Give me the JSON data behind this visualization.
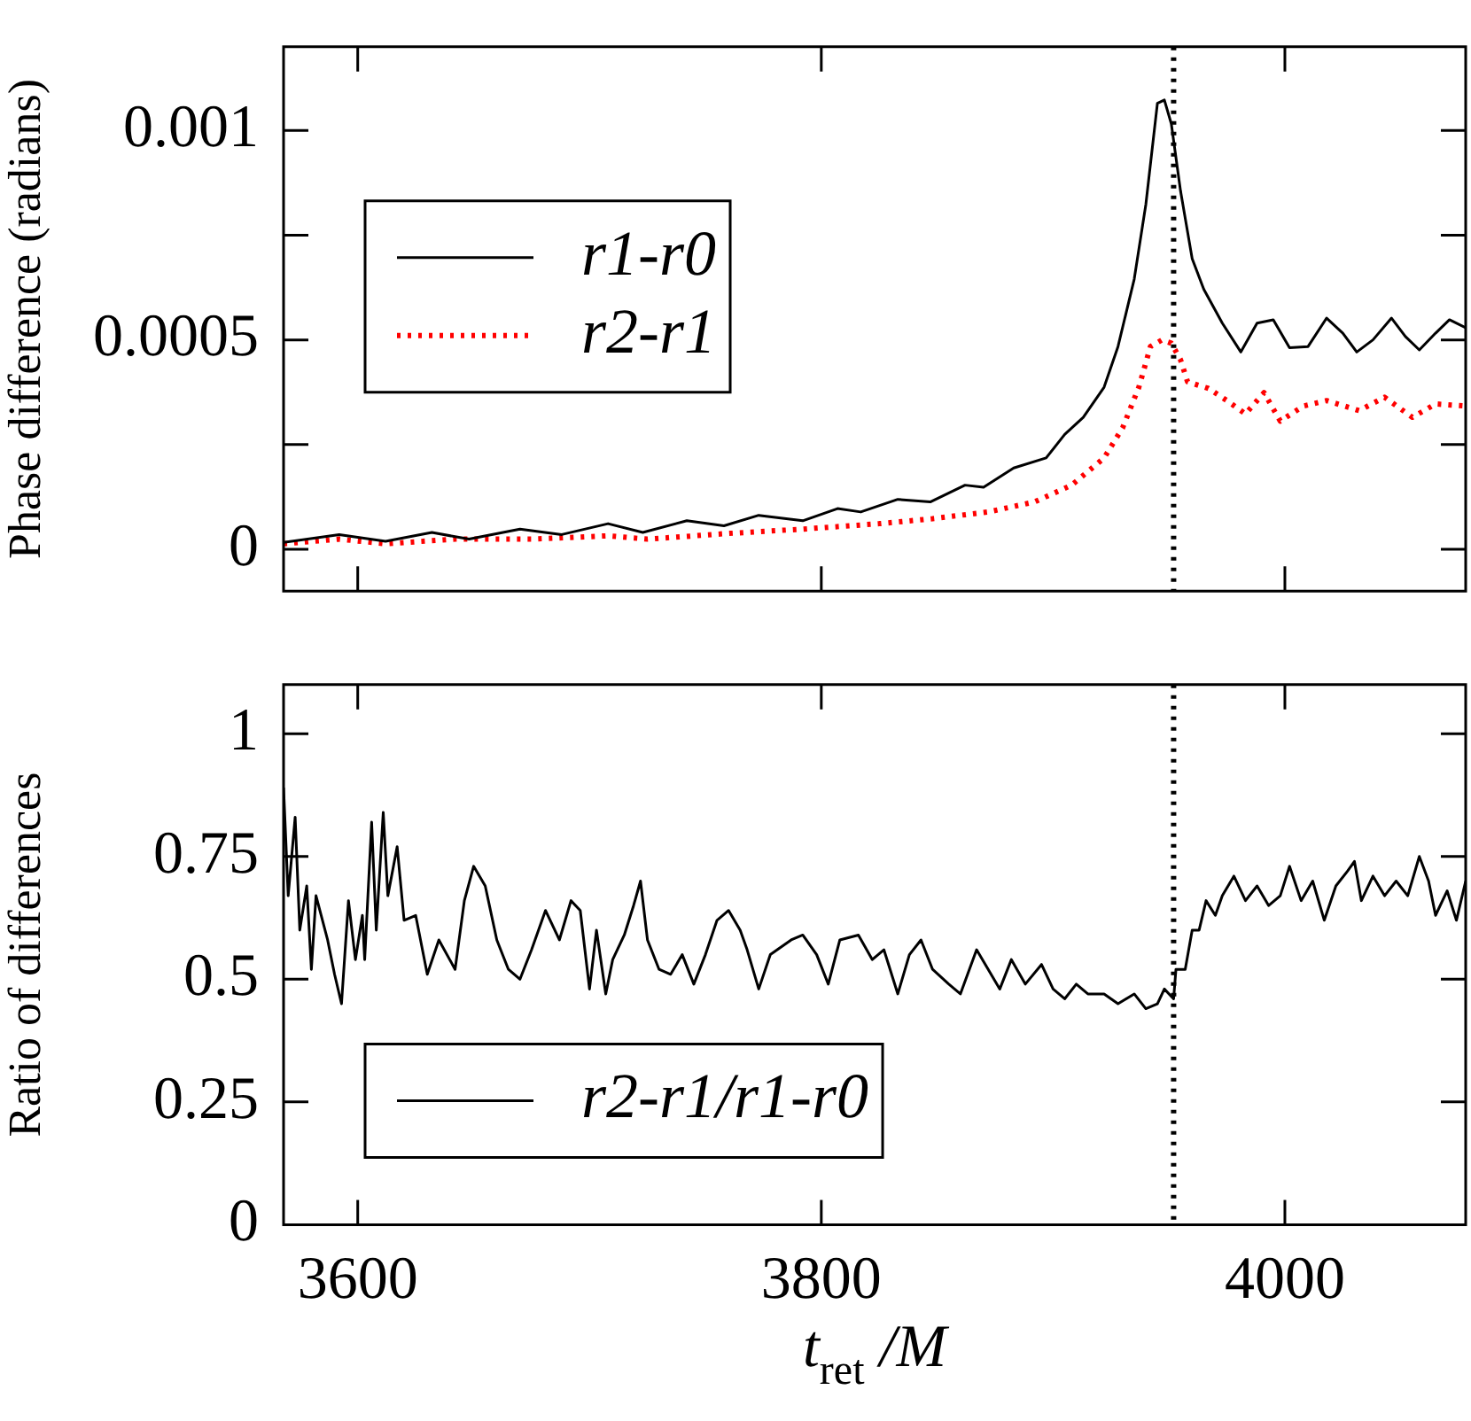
{
  "chart_data": [
    {
      "type": "line",
      "ylabel": "Phase difference (radians)",
      "xlim": [
        3568,
        4078
      ],
      "xticks": [
        3600,
        3800,
        4000
      ],
      "ylim": [
        -0.0001,
        0.0012
      ],
      "yticks": [
        0,
        {
          "value": 0.00025,
          "label": null
        },
        0.0005,
        {
          "value": 0.00075,
          "label": null
        },
        0.001
      ],
      "tick_labels": "y",
      "legend": "top left",
      "marker": "none",
      "ref_lines": [
        {
          "axis": "x",
          "value": 3952,
          "color": "#000000",
          "line_style": "dotted"
        }
      ],
      "series": [
        {
          "name": "r1-r0",
          "color": "#000000",
          "line_style": "solid",
          "x": [
            3568,
            3592,
            3612,
            3632,
            3648,
            3670,
            3688,
            3708,
            3723,
            3742,
            3758,
            3773,
            3792,
            3807,
            3817,
            3833,
            3847,
            3862,
            3870,
            3883,
            3897,
            3905,
            3913,
            3922,
            3928,
            3935,
            3940,
            3945,
            3948,
            3951,
            3955,
            3960,
            3965,
            3973,
            3981,
            3988,
            3995,
            4002,
            4010,
            4018,
            4025,
            4031,
            4038,
            4046,
            4052,
            4058,
            4065,
            4071,
            4078
          ],
          "values": [
            1.6e-05,
            3.5e-05,
            1.9e-05,
            4e-05,
            2.4e-05,
            4.8e-05,
            3.5e-05,
            6.1e-05,
            4e-05,
            6.8e-05,
            5.6e-05,
            8.1e-05,
            6.8e-05,
            9.7e-05,
            8.9e-05,
            0.000119,
            0.000113,
            0.000153,
            0.000148,
            0.000194,
            0.000218,
            0.000274,
            0.000315,
            0.000387,
            0.000484,
            0.000645,
            0.000823,
            0.001065,
            0.001073,
            0.001016,
            0.000855,
            0.000694,
            0.000621,
            0.00054,
            0.000471,
            0.00054,
            0.000548,
            0.000481,
            0.000484,
            0.000552,
            0.000516,
            0.000471,
            0.0005,
            0.000552,
            0.000508,
            0.000476,
            0.000516,
            0.000548,
            0.000529
          ]
        },
        {
          "name": "r2-r1",
          "color": "#ff0000",
          "line_style": "dotted",
          "x": [
            3568,
            3592,
            3612,
            3642,
            3675,
            3708,
            3725,
            3758,
            3792,
            3825,
            3848,
            3872,
            3892,
            3908,
            3922,
            3930,
            3937,
            3942,
            3947,
            3951,
            3955,
            3958,
            3967,
            3975,
            3983,
            3991,
            3998,
            4008,
            4018,
            4032,
            4043,
            4055,
            4065,
            4078
          ],
          "values": [
            1.3e-05,
            2.4e-05,
            1.3e-05,
            2.4e-05,
            2.4e-05,
            3.2e-05,
            2.4e-05,
            3.7e-05,
            4.8e-05,
            6.1e-05,
            7.3e-05,
            8.9e-05,
            0.000113,
            0.000153,
            0.000218,
            0.00029,
            0.000387,
            0.000484,
            0.0005,
            0.000492,
            0.000452,
            0.0004,
            0.000384,
            0.000355,
            0.000323,
            0.000374,
            0.000306,
            0.000342,
            0.000355,
            0.000331,
            0.000363,
            0.000315,
            0.000347,
            0.000342
          ]
        }
      ]
    },
    {
      "type": "line",
      "ylabel": "Ratio of differences",
      "xlabel": "t$_{ret}$ /M",
      "xlim": [
        3568,
        4078
      ],
      "xticks": [
        3600,
        3800,
        4000
      ],
      "ylim": [
        0,
        1.1
      ],
      "yticks": [
        0,
        0.25,
        0.5,
        0.75,
        1
      ],
      "legend": "bottom left",
      "marker": "none",
      "ref_lines": [
        {
          "axis": "x",
          "value": 3952,
          "color": "#000000",
          "line_style": "dotted"
        }
      ],
      "series": [
        {
          "name": "r2-r1/r1-r0",
          "color": "#000000",
          "line_style": "solid",
          "x": [
            3568,
            3570,
            3573,
            3575,
            3578,
            3580,
            3582,
            3587,
            3590,
            3593,
            3596,
            3599,
            3602,
            3603,
            3606,
            3608,
            3611,
            3613,
            3617,
            3620,
            3625,
            3630,
            3635,
            3642,
            3646,
            3650,
            3655,
            3660,
            3665,
            3670,
            3675,
            3681,
            3687,
            3692,
            3696,
            3700,
            3703,
            3707,
            3710,
            3715,
            3719,
            3722,
            3725,
            3730,
            3735,
            3740,
            3745,
            3750,
            3755,
            3760,
            3765,
            3768,
            3773,
            3778,
            3787,
            3792,
            3798,
            3803,
            3808,
            3816,
            3822,
            3827,
            3833,
            3838,
            3843,
            3848,
            3855,
            3860,
            3867,
            3872,
            3877,
            3882,
            3888,
            3895,
            3900,
            3905,
            3910,
            3915,
            3922,
            3928,
            3935,
            3940,
            3945,
            3948,
            3952,
            3953,
            3957,
            3960,
            3963,
            3966,
            3970,
            3973,
            3978,
            3983,
            3988,
            3993,
            3998,
            4002,
            4007,
            4012,
            4017,
            4022,
            4027,
            4030,
            4033,
            4038,
            4043,
            4048,
            4053,
            4058,
            4062,
            4065,
            4070,
            4074,
            4078
          ],
          "values": [
            0.89,
            0.67,
            0.83,
            0.6,
            0.69,
            0.52,
            0.67,
            0.58,
            0.51,
            0.45,
            0.66,
            0.54,
            0.63,
            0.54,
            0.82,
            0.6,
            0.84,
            0.67,
            0.77,
            0.62,
            0.63,
            0.51,
            0.58,
            0.52,
            0.66,
            0.73,
            0.69,
            0.58,
            0.52,
            0.5,
            0.56,
            0.64,
            0.58,
            0.66,
            0.64,
            0.48,
            0.6,
            0.47,
            0.54,
            0.59,
            0.65,
            0.7,
            0.58,
            0.52,
            0.51,
            0.55,
            0.49,
            0.55,
            0.62,
            0.64,
            0.6,
            0.56,
            0.48,
            0.55,
            0.58,
            0.59,
            0.55,
            0.49,
            0.58,
            0.59,
            0.54,
            0.56,
            0.47,
            0.55,
            0.58,
            0.52,
            0.49,
            0.47,
            0.56,
            0.52,
            0.48,
            0.54,
            0.49,
            0.53,
            0.48,
            0.46,
            0.49,
            0.47,
            0.47,
            0.45,
            0.47,
            0.44,
            0.45,
            0.48,
            0.46,
            0.52,
            0.52,
            0.6,
            0.6,
            0.66,
            0.63,
            0.67,
            0.71,
            0.66,
            0.69,
            0.65,
            0.67,
            0.73,
            0.66,
            0.7,
            0.62,
            0.69,
            0.72,
            0.74,
            0.66,
            0.71,
            0.67,
            0.7,
            0.67,
            0.75,
            0.7,
            0.63,
            0.68,
            0.62,
            0.7
          ]
        }
      ]
    }
  ]
}
